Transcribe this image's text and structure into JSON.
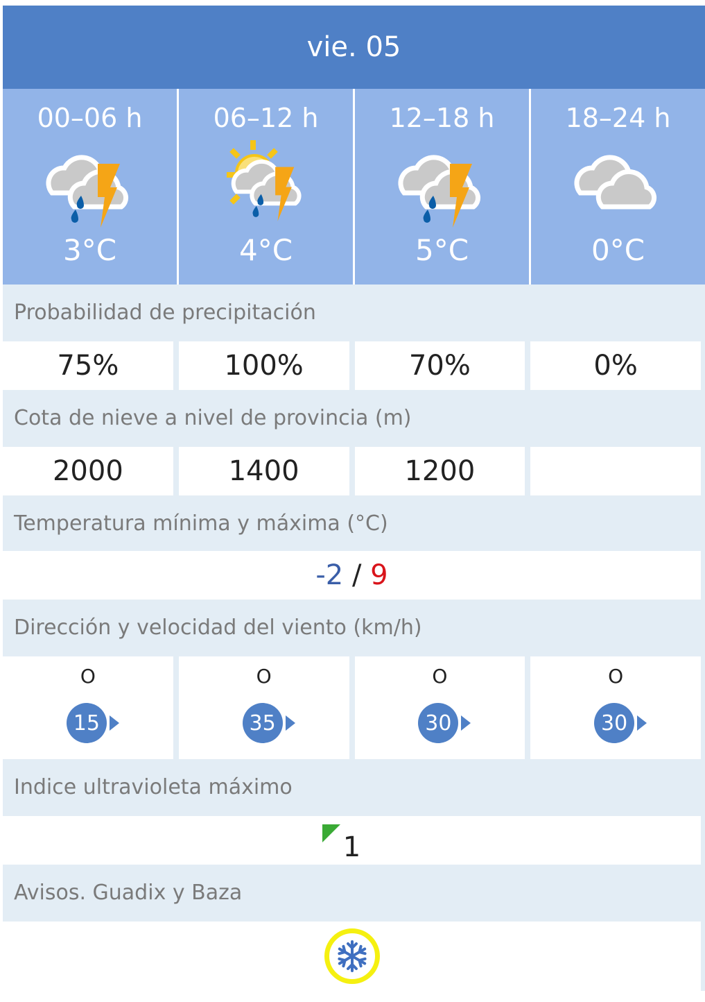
{
  "header": {
    "title": "vie. 05"
  },
  "periods": [
    {
      "label": "00–06 h",
      "icon": "cloud-rain-storm-icon",
      "temp": "3°C"
    },
    {
      "label": "06–12 h",
      "icon": "sun-cloud-rain-storm-icon",
      "temp": "4°C"
    },
    {
      "label": "12–18 h",
      "icon": "cloud-rain-storm-icon",
      "temp": "5°C"
    },
    {
      "label": "18–24 h",
      "icon": "cloud-icon",
      "temp": "0°C"
    }
  ],
  "precip": {
    "label": "Probabilidad de precipitación",
    "values": [
      "75%",
      "100%",
      "70%",
      "0%"
    ]
  },
  "snow": {
    "label": "Cota de nieve a nivel de provincia (m)",
    "values": [
      "2000",
      "1400",
      "1200",
      ""
    ]
  },
  "temps": {
    "label": "Temperatura mínima y máxima (°C)",
    "min": "-2",
    "sep": " / ",
    "max": "9",
    "min_color": "#3a5ea8",
    "max_color": "#d9141b"
  },
  "wind": {
    "label": "Dirección y velocidad del viento (km/h)",
    "items": [
      {
        "dir": "O",
        "speed": "15"
      },
      {
        "dir": "O",
        "speed": "35"
      },
      {
        "dir": "O",
        "speed": "30"
      },
      {
        "dir": "O",
        "speed": "30"
      }
    ]
  },
  "uv": {
    "label": "Indice ultravioleta máximo",
    "value": "1",
    "color": "#3aaa35"
  },
  "warnings": {
    "label": "Avisos. Guadix y Baza",
    "icon": "snowflake-icon",
    "level_color": "#f5f010"
  },
  "colors": {
    "header": "#4f80c6",
    "period_bg": "#92b4e8",
    "label_bg": "#e3edf5"
  }
}
